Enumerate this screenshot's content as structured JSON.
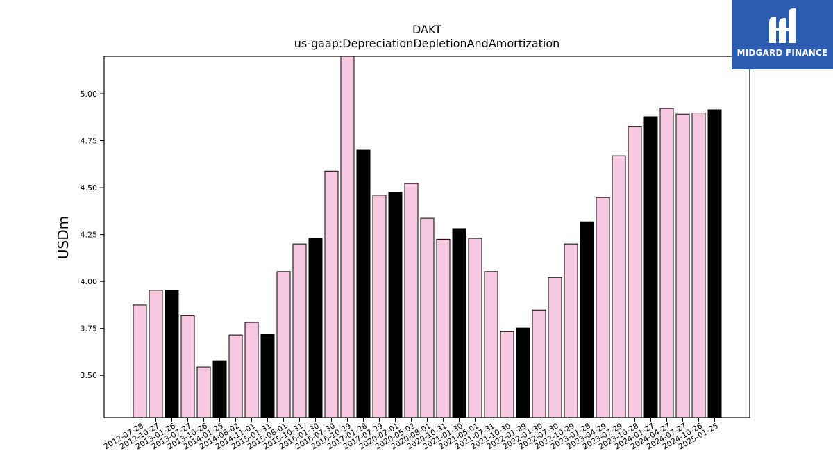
{
  "brand": {
    "name": "MIDGARD FINANCE",
    "background": "#2b5cb0"
  },
  "chart_data": {
    "type": "bar",
    "title": "DAKT",
    "subtitle": "us-gaap:DepreciationDepletionAndAmortization",
    "xlabel": "",
    "ylabel": "USDm",
    "ylim": [
      3.275,
      5.2
    ],
    "yticks": [
      "3.50",
      "3.75",
      "4.00",
      "4.25",
      "4.50",
      "4.75",
      "5.00"
    ],
    "grid": false,
    "legend": "none",
    "colors": {
      "quarter": "#f8c8e0",
      "fiscal_year_end": "#000000",
      "edge": "#000000"
    },
    "categories": [
      "2012-07-28",
      "2012-10-27",
      "2013-01-26",
      "2013-07-27",
      "2013-10-26",
      "2014-01-25",
      "2014-08-02",
      "2014-11-01",
      "2015-01-31",
      "2015-08-01",
      "2015-10-31",
      "2016-01-30",
      "2016-07-30",
      "2016-10-29",
      "2017-01-28",
      "2017-07-29",
      "2020-02-01",
      "2020-05-02",
      "2020-08-01",
      "2020-10-31",
      "2021-01-30",
      "2021-05-01",
      "2021-07-31",
      "2021-10-30",
      "2022-01-29",
      "2022-04-30",
      "2022-07-30",
      "2022-10-29",
      "2023-01-28",
      "2023-04-29",
      "2023-07-29",
      "2023-10-28",
      "2024-01-27",
      "2024-04-27",
      "2024-07-27",
      "2024-10-26",
      "2025-01-25"
    ],
    "values": [
      3.875,
      3.953,
      3.953,
      3.818,
      3.545,
      3.578,
      3.715,
      3.782,
      3.72,
      4.053,
      4.2,
      4.23,
      4.588,
      5.2,
      4.7,
      4.46,
      4.475,
      4.522,
      4.337,
      4.225,
      4.282,
      4.23,
      4.053,
      3.733,
      3.752,
      3.848,
      4.022,
      4.2,
      4.318,
      4.448,
      4.67,
      4.825,
      4.878,
      4.922,
      4.892,
      4.898,
      4.915
    ],
    "highlight": [
      false,
      false,
      true,
      false,
      false,
      true,
      false,
      false,
      true,
      false,
      false,
      true,
      false,
      false,
      true,
      false,
      true,
      false,
      false,
      false,
      true,
      false,
      false,
      false,
      true,
      false,
      false,
      false,
      true,
      false,
      false,
      false,
      true,
      false,
      false,
      false,
      true
    ]
  }
}
